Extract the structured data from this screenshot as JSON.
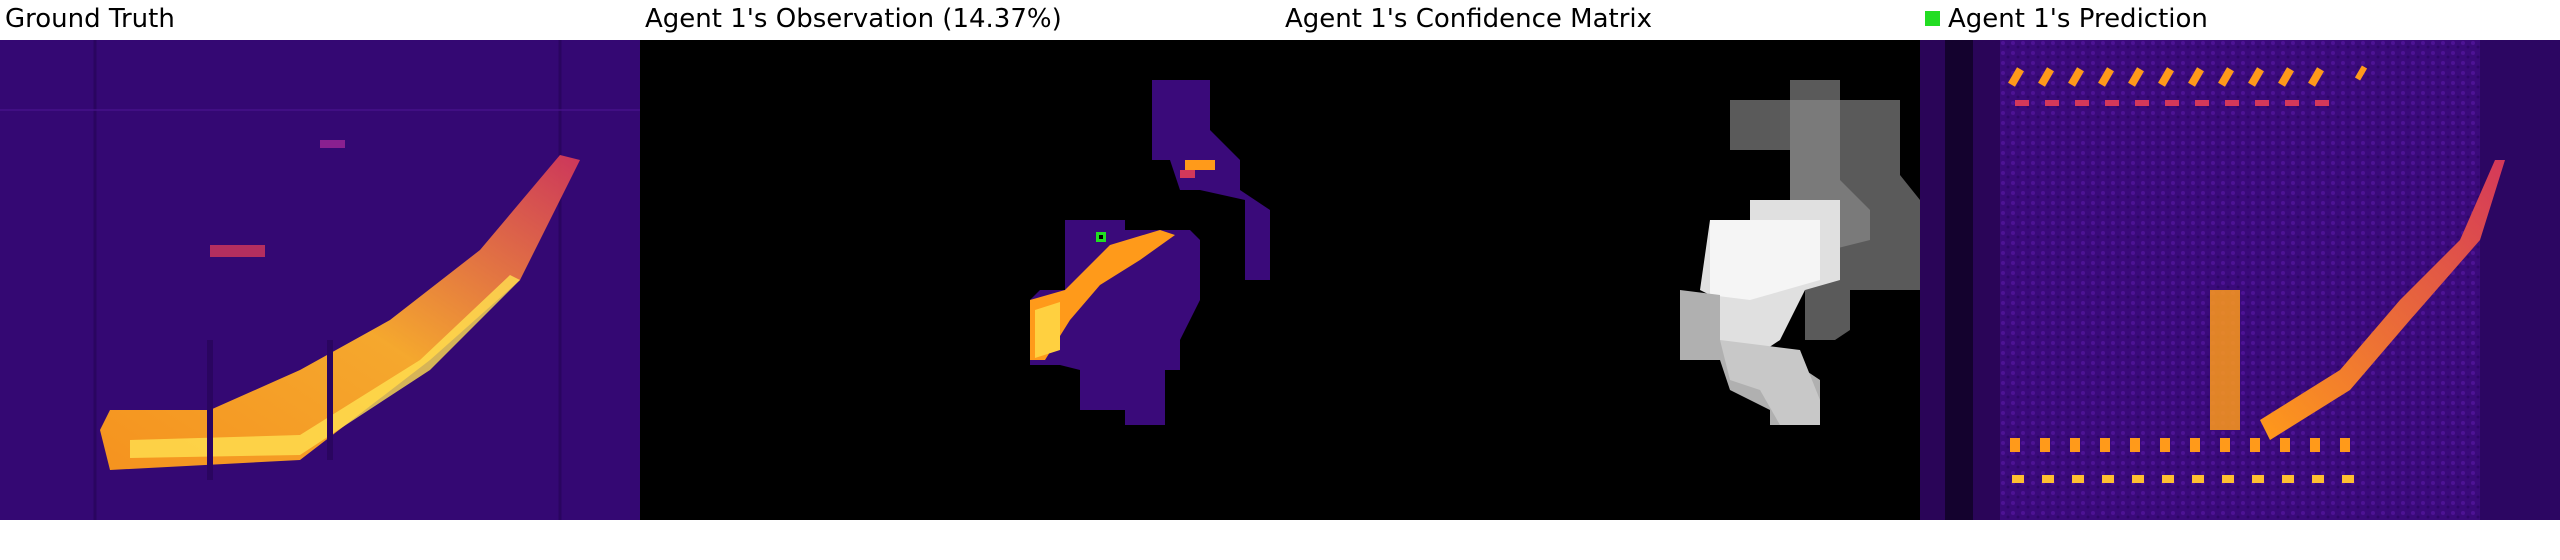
{
  "panels": {
    "ground_truth": {
      "title": "Ground Truth"
    },
    "observation": {
      "title": "Agent 1's Observation (14.37%)"
    },
    "confidence": {
      "title": "Agent 1's Confidence Matrix"
    },
    "prediction": {
      "title": "Agent 1's Prediction"
    }
  },
  "colors": {
    "background_purple": "#3a0a7a",
    "hot_orange": "#f2901c",
    "hot_yellow": "#ffe050",
    "observed_mask": "#000000",
    "agent_marker": "#22dd22"
  },
  "icons": {
    "agent_marker": "green-square-icon",
    "legend": "green-square-icon"
  }
}
